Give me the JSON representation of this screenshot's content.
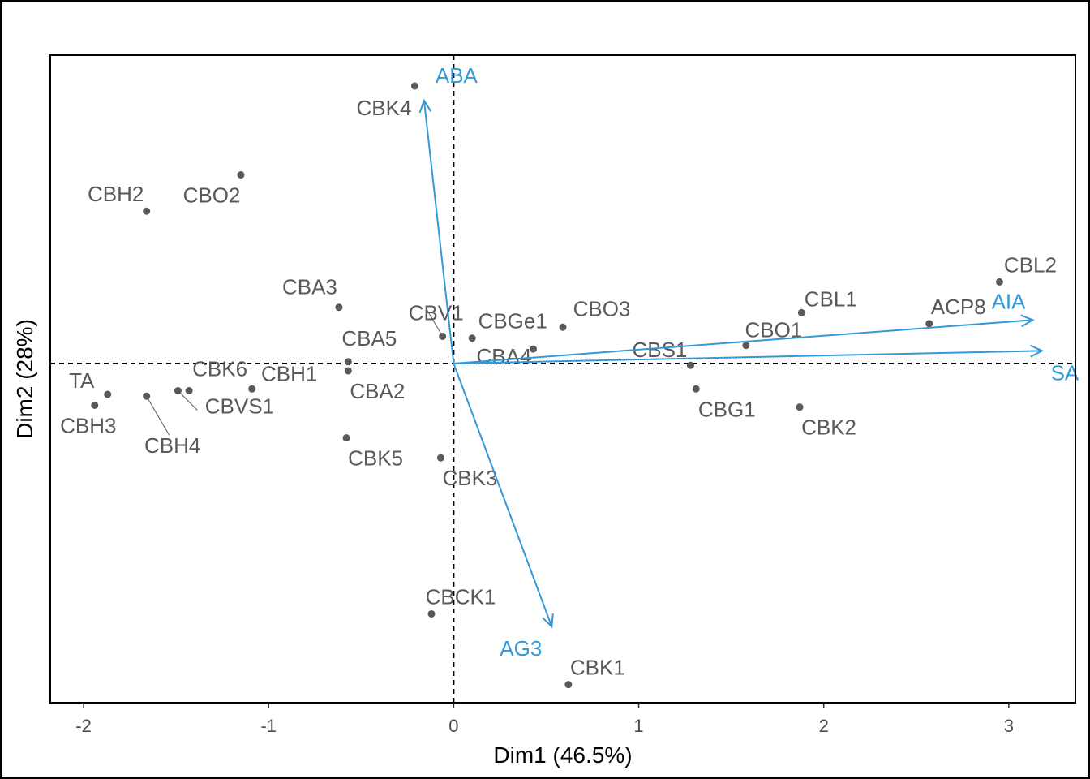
{
  "chart_data": {
    "type": "scatter",
    "title": "",
    "xlabel": "Dim1 (46.5%)",
    "ylabel": "Dim2 (28%)",
    "xlim": [
      -2.18,
      3.36
    ],
    "ylim": [
      -1.87,
      1.7
    ],
    "xticks": [
      "-2",
      "-1",
      "0",
      "1",
      "2",
      "3"
    ],
    "xtick_values": [
      -2,
      -1,
      0,
      1,
      2,
      3
    ],
    "grid": false,
    "reference_lines": {
      "x": 0,
      "y": 0,
      "style": "dashed"
    },
    "colors": {
      "points": "#595959",
      "arrows": "#3399d6",
      "frame": "#000000"
    },
    "points": [
      {
        "name": "CBK4",
        "x": -0.21,
        "y": 1.53
      },
      {
        "name": "CBH2",
        "x": -1.66,
        "y": 0.84
      },
      {
        "name": "CBO2",
        "x": -1.15,
        "y": 1.04
      },
      {
        "name": "CBA3",
        "x": -0.62,
        "y": 0.31
      },
      {
        "name": "CBV1",
        "x": -0.06,
        "y": 0.15
      },
      {
        "name": "CBGe1",
        "x": 0.1,
        "y": 0.14
      },
      {
        "name": "CBO3",
        "x": 0.59,
        "y": 0.2
      },
      {
        "name": "CBA5",
        "x": -0.57,
        "y": 0.01
      },
      {
        "name": "CBA2",
        "x": -0.57,
        "y": -0.04
      },
      {
        "name": "CBA4",
        "x": 0.43,
        "y": 0.08
      },
      {
        "name": "CBS1",
        "x": 1.28,
        "y": -0.01
      },
      {
        "name": "CBO1",
        "x": 1.58,
        "y": 0.1
      },
      {
        "name": "CBL1",
        "x": 1.88,
        "y": 0.28
      },
      {
        "name": "ACP8",
        "x": 2.57,
        "y": 0.22
      },
      {
        "name": "CBL2",
        "x": 2.95,
        "y": 0.45
      },
      {
        "name": "CBG1",
        "x": 1.31,
        "y": -0.14
      },
      {
        "name": "CBK2",
        "x": 1.87,
        "y": -0.24
      },
      {
        "name": "TA",
        "x": -1.87,
        "y": -0.17
      },
      {
        "name": "CBH3",
        "x": -1.94,
        "y": -0.23
      },
      {
        "name": "CBH4",
        "x": -1.66,
        "y": -0.18
      },
      {
        "name": "CBK6",
        "x": -1.43,
        "y": -0.15
      },
      {
        "name": "CBVS1",
        "x": -1.49,
        "y": -0.15
      },
      {
        "name": "CBH1",
        "x": -1.09,
        "y": -0.14
      },
      {
        "name": "CBK5",
        "x": -0.58,
        "y": -0.41
      },
      {
        "name": "CBK3",
        "x": -0.07,
        "y": -0.52
      },
      {
        "name": "CBCK1",
        "x": -0.12,
        "y": -1.38
      },
      {
        "name": "CBK1",
        "x": 0.62,
        "y": -1.77
      }
    ],
    "variables": [
      {
        "name": "ABA",
        "x": -0.16,
        "y": 1.45
      },
      {
        "name": "AIA",
        "x": 3.13,
        "y": 0.24
      },
      {
        "name": "SA",
        "x": 3.18,
        "y": 0.07
      },
      {
        "name": "AG3",
        "x": 0.53,
        "y": -1.45
      }
    ]
  }
}
